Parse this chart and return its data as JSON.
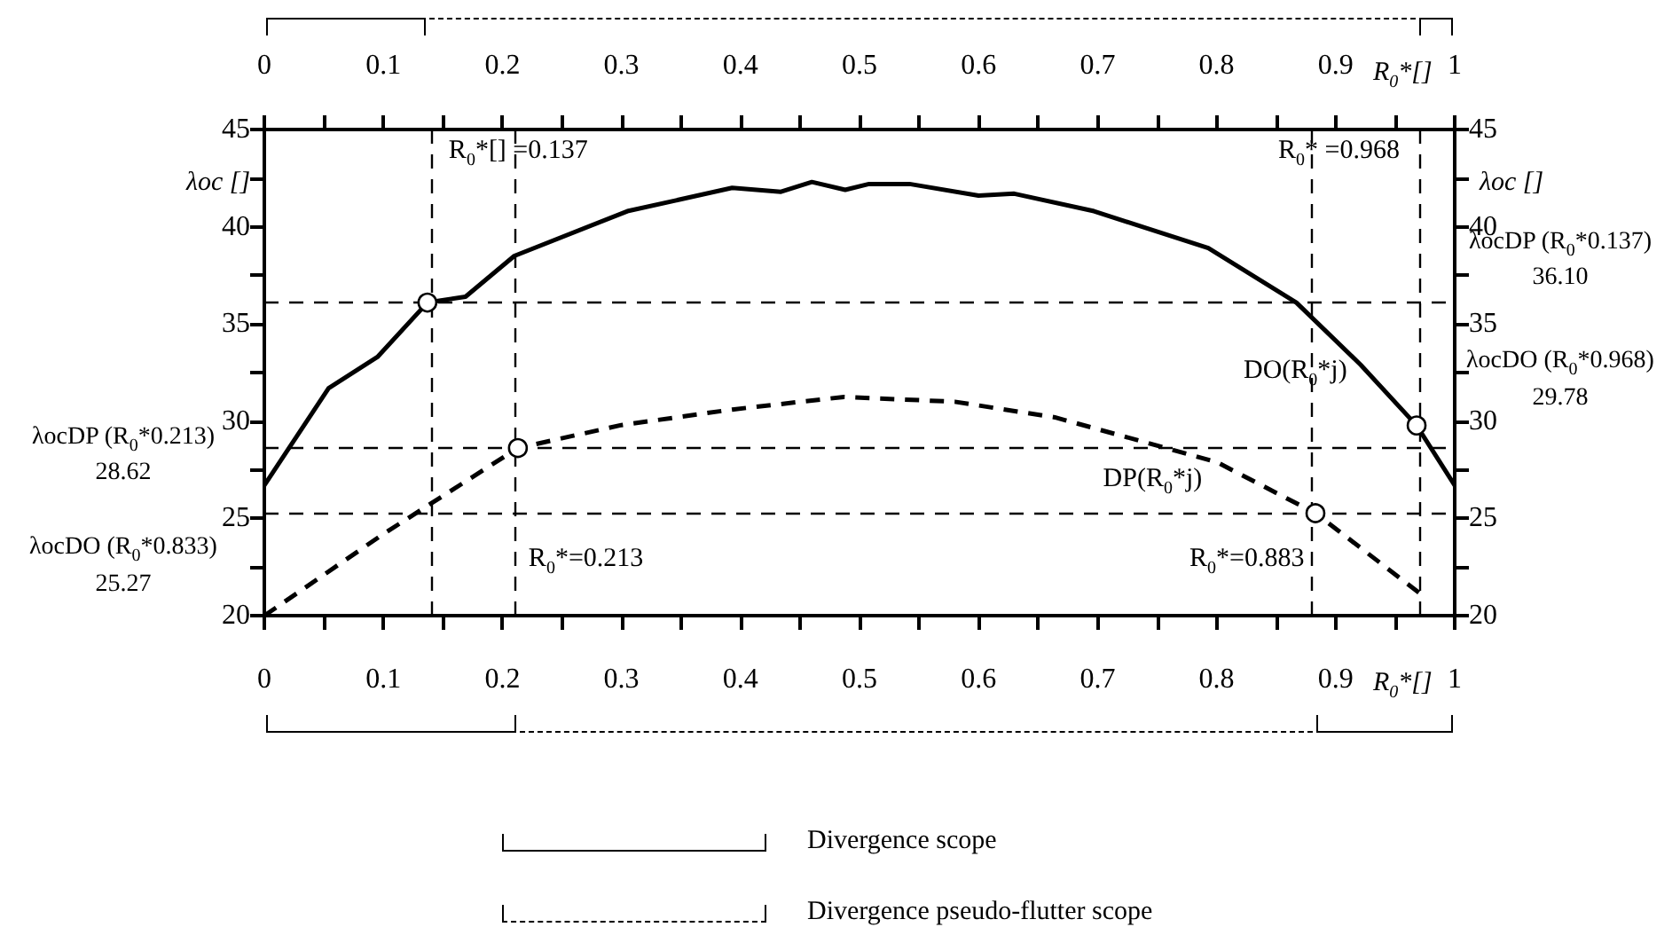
{
  "chart_data": {
    "type": "line",
    "xlabel": "R$_{0}$*[]",
    "x2label": "R$_{0}$*[]",
    "ylabel": "λoc []",
    "y2label": "λoc []",
    "xlim": [
      0,
      1
    ],
    "xticks": [
      0,
      {
        "value": 0.05,
        "label": null
      },
      0.1,
      {
        "value": 0.15,
        "label": null
      },
      0.2,
      {
        "value": 0.25,
        "label": null
      },
      0.3,
      {
        "value": 0.35,
        "label": null
      },
      0.4,
      {
        "value": 0.45,
        "label": null
      },
      0.5,
      {
        "value": 0.55,
        "label": null
      },
      0.6,
      {
        "value": 0.65,
        "label": null
      },
      0.7,
      {
        "value": 0.75,
        "label": null
      },
      0.8,
      {
        "value": 0.85,
        "label": null
      },
      0.9,
      {
        "value": 0.95,
        "label": null
      },
      1
    ],
    "x2lim": [
      0,
      1
    ],
    "x2ticks": [
      0,
      {
        "value": 0.05,
        "label": null
      },
      0.1,
      {
        "value": 0.15,
        "label": null
      },
      0.2,
      {
        "value": 0.25,
        "label": null
      },
      0.3,
      {
        "value": 0.35,
        "label": null
      },
      0.4,
      {
        "value": 0.45,
        "label": null
      },
      0.5,
      {
        "value": 0.55,
        "label": null
      },
      0.6,
      {
        "value": 0.65,
        "label": null
      },
      0.7,
      {
        "value": 0.75,
        "label": null
      },
      0.8,
      {
        "value": 0.85,
        "label": null
      },
      0.9,
      {
        "value": 0.95,
        "label": null
      },
      1
    ],
    "ylim": [
      20,
      45
    ],
    "yticks": [
      20,
      {
        "value": 22.5,
        "label": null
      },
      25,
      {
        "value": 27.5,
        "label": null
      },
      30,
      {
        "value": 32.5,
        "label": null
      },
      35,
      {
        "value": 37.5,
        "label": null
      },
      40,
      {
        "value": 42.5,
        "label": null
      },
      45
    ],
    "y2lim": [
      20,
      45
    ],
    "y2ticks": [
      20,
      {
        "value": 22.5,
        "label": null
      },
      25,
      {
        "value": 27.5,
        "label": null
      },
      30,
      {
        "value": 32.5,
        "label": null
      },
      35,
      {
        "value": 37.5,
        "label": null
      },
      40,
      {
        "value": 42.5,
        "label": null
      },
      45
    ],
    "grid": false,
    "legend": false,
    "series": [
      {
        "name": "DO(R$_{0}$*j)",
        "color": "#000000",
        "line_style": "solid",
        "marker": "none",
        "x": [
          0,
          0.054,
          0.095,
          0.137,
          0.169,
          0.21,
          0.305,
          0.393,
          0.434,
          0.46,
          0.488,
          0.508,
          0.542,
          0.6,
          0.63,
          0.697,
          0.793,
          0.867,
          0.921,
          0.968,
          1
        ],
        "values": [
          26.7,
          31.7,
          33.3,
          36.1,
          36.4,
          38.5,
          40.8,
          42.0,
          41.8,
          42.3,
          41.9,
          42.2,
          42.2,
          41.6,
          41.7,
          40.8,
          38.9,
          36.1,
          32.9,
          29.78,
          26.7
        ]
      },
      {
        "name": "DP(R$_{0}$*j)",
        "color": "#000000",
        "line_style": "dashed",
        "marker": "none",
        "x": [
          0,
          0.1,
          0.213,
          0.3,
          0.393,
          0.487,
          0.58,
          0.664,
          0.8,
          0.883,
          0.976
        ],
        "values": [
          20,
          24.2,
          28.62,
          29.8,
          30.6,
          31.25,
          31.0,
          30.2,
          27.9,
          25.27,
          20.9
        ]
      },
      {
        "type": "scatter",
        "color": "#ffffff",
        "marker": "circle",
        "x": [
          0.137,
          0.968,
          0.213,
          0.883
        ],
        "values": [
          36.1,
          29.78,
          28.62,
          25.27
        ]
      }
    ],
    "ref_lines": [
      {
        "axis": "y",
        "value": 36.1,
        "label": "λocDP (R$_{0}$*0.137)\n36.10",
        "line_style": "dashed",
        "color": "#000000"
      },
      {
        "axis": "y",
        "value": 28.62,
        "label": "λocDP (R$_{0}$*0.213)\n28.62",
        "line_style": "dashed",
        "color": "#000000"
      },
      {
        "axis": "y",
        "value": 25.27,
        "label": "λocDO (R$_{0}$*0.833)\n25.27",
        "line_style": "dashed",
        "color": "#000000"
      },
      {
        "axis": "x",
        "value": 0.137,
        "label": "R$_{0}$*[] =0.137",
        "line_style": "dashed",
        "color": "#000000"
      },
      {
        "axis": "x",
        "value": 0.968,
        "label": "R$_{0}$* =0.968",
        "line_style": "dashed",
        "color": "#000000"
      },
      {
        "axis": "x",
        "value": 0.213,
        "label": "R$_{0}$*=0.213",
        "line_style": "dashed",
        "color": "#000000"
      },
      {
        "axis": "x",
        "value": 0.883,
        "label": "R$_{0}$*=0.883",
        "line_style": "dashed",
        "color": "#000000"
      }
    ],
    "annotations": [
      "Divergence scope",
      "Divergence pseudo-flutter scope",
      "λocDO (R$_{0}$*0.968)\n29.78"
    ]
  }
}
